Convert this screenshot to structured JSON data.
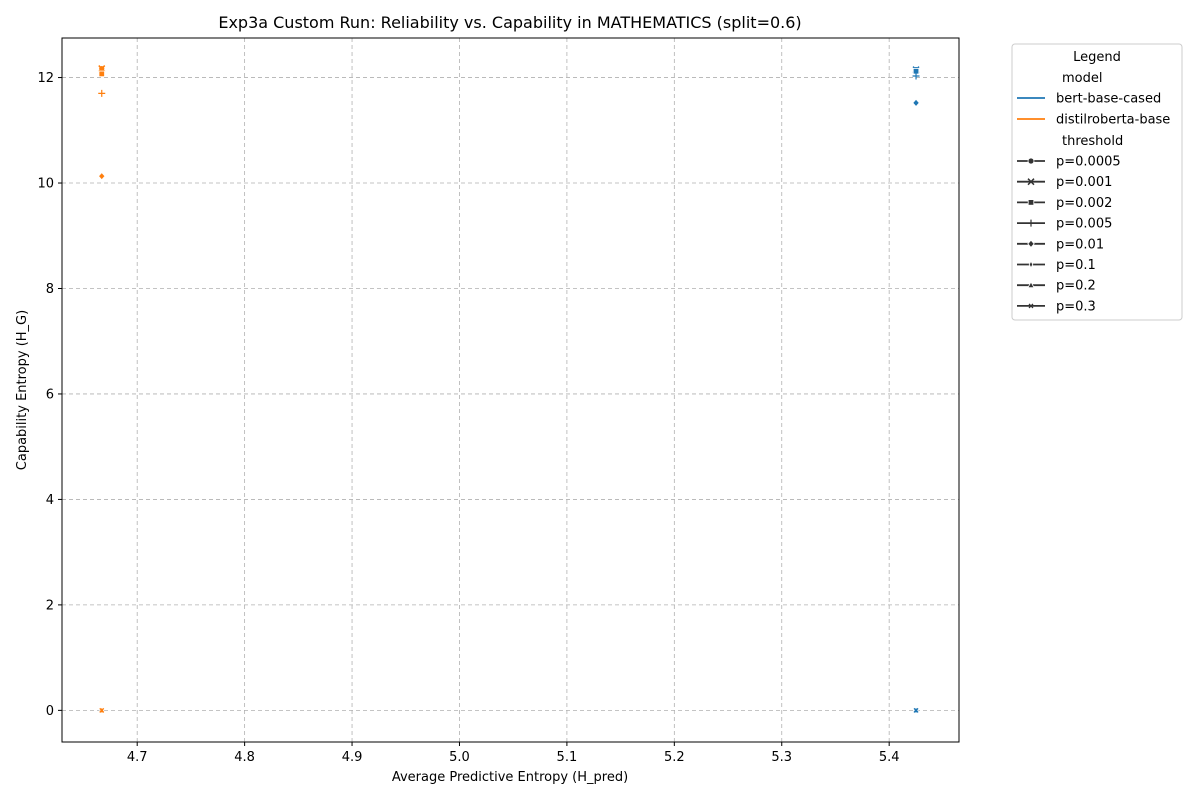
{
  "chart_data": {
    "type": "scatter",
    "title": "Exp3a Custom Run: Reliability vs. Capability in MATHEMATICS (split=0.6)",
    "xlabel": "Average Predictive Entropy (H_pred)",
    "ylabel": "Capability Entropy (H_G)",
    "xlim": [
      4.63,
      5.465
    ],
    "ylim": [
      -0.6,
      12.75
    ],
    "xticks": [
      4.7,
      4.8,
      4.9,
      5.0,
      5.1,
      5.2,
      5.3,
      5.4
    ],
    "xtick_labels": [
      "4.7",
      "4.8",
      "4.9",
      "5.0",
      "5.1",
      "5.2",
      "5.3",
      "5.4"
    ],
    "yticks": [
      0,
      2,
      4,
      6,
      8,
      10,
      12
    ],
    "ytick_labels": [
      "0",
      "2",
      "4",
      "6",
      "8",
      "10",
      "12"
    ],
    "grid": true,
    "legend_placement": "outside-top-right",
    "legend": {
      "title": "Legend",
      "model_header": "model",
      "threshold_header": "threshold",
      "models": [
        {
          "name": "bert-base-cased",
          "color": "#1f77b4"
        },
        {
          "name": "distilroberta-base",
          "color": "#ff7f0e"
        }
      ],
      "thresholds": [
        {
          "label": "p=0.0005",
          "marker": "circle"
        },
        {
          "label": "p=0.001",
          "marker": "x"
        },
        {
          "label": "p=0.002",
          "marker": "square"
        },
        {
          "label": "p=0.005",
          "marker": "plus"
        },
        {
          "label": "p=0.01",
          "marker": "diamond"
        },
        {
          "label": "p=0.1",
          "marker": "thin-diamond"
        },
        {
          "label": "p=0.2",
          "marker": "triangle"
        },
        {
          "label": "p=0.3",
          "marker": "small-x"
        }
      ]
    },
    "series": [
      {
        "name": "bert-base-cased",
        "color": "#1f77b4",
        "points": [
          {
            "threshold": "p=0.0005",
            "marker": "circle",
            "x": 5.425,
            "y": 12.15
          },
          {
            "threshold": "p=0.001",
            "marker": "x",
            "x": 5.425,
            "y": 12.15
          },
          {
            "threshold": "p=0.002",
            "marker": "square",
            "x": 5.425,
            "y": 12.12
          },
          {
            "threshold": "p=0.005",
            "marker": "plus",
            "x": 5.425,
            "y": 12.03
          },
          {
            "threshold": "p=0.01",
            "marker": "diamond",
            "x": 5.425,
            "y": 11.52
          },
          {
            "threshold": "p=0.1",
            "marker": "thin-diamond",
            "x": 5.425,
            "y": 0.0
          },
          {
            "threshold": "p=0.2",
            "marker": "triangle",
            "x": 5.425,
            "y": 0.0
          },
          {
            "threshold": "p=0.3",
            "marker": "small-x",
            "x": 5.425,
            "y": 0.0
          }
        ]
      },
      {
        "name": "distilroberta-base",
        "color": "#ff7f0e",
        "points": [
          {
            "threshold": "p=0.0005",
            "marker": "circle",
            "x": 4.667,
            "y": 12.17
          },
          {
            "threshold": "p=0.001",
            "marker": "x",
            "x": 4.667,
            "y": 12.17
          },
          {
            "threshold": "p=0.002",
            "marker": "square",
            "x": 4.667,
            "y": 12.07
          },
          {
            "threshold": "p=0.005",
            "marker": "plus",
            "x": 4.667,
            "y": 11.7
          },
          {
            "threshold": "p=0.01",
            "marker": "diamond",
            "x": 4.667,
            "y": 10.13
          },
          {
            "threshold": "p=0.1",
            "marker": "thin-diamond",
            "x": 4.667,
            "y": 0.0
          },
          {
            "threshold": "p=0.2",
            "marker": "triangle",
            "x": 4.667,
            "y": 0.0
          },
          {
            "threshold": "p=0.3",
            "marker": "small-x",
            "x": 4.667,
            "y": 0.0
          }
        ]
      }
    ]
  }
}
